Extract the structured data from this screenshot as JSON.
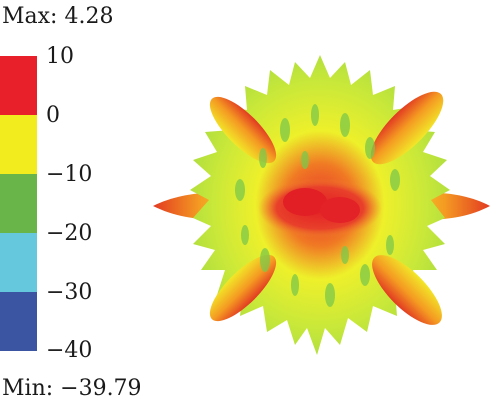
{
  "max_label": "Max: 4.28",
  "min_label": "Min: −39.79",
  "colorbar": {
    "ticks": [
      "10",
      "0",
      "−10",
      "−20",
      "−30",
      "−40"
    ],
    "colors": [
      "#e8202a",
      "#f2ec1e",
      "#6ab54a",
      "#66c8dc",
      "#3b55a3"
    ]
  }
}
